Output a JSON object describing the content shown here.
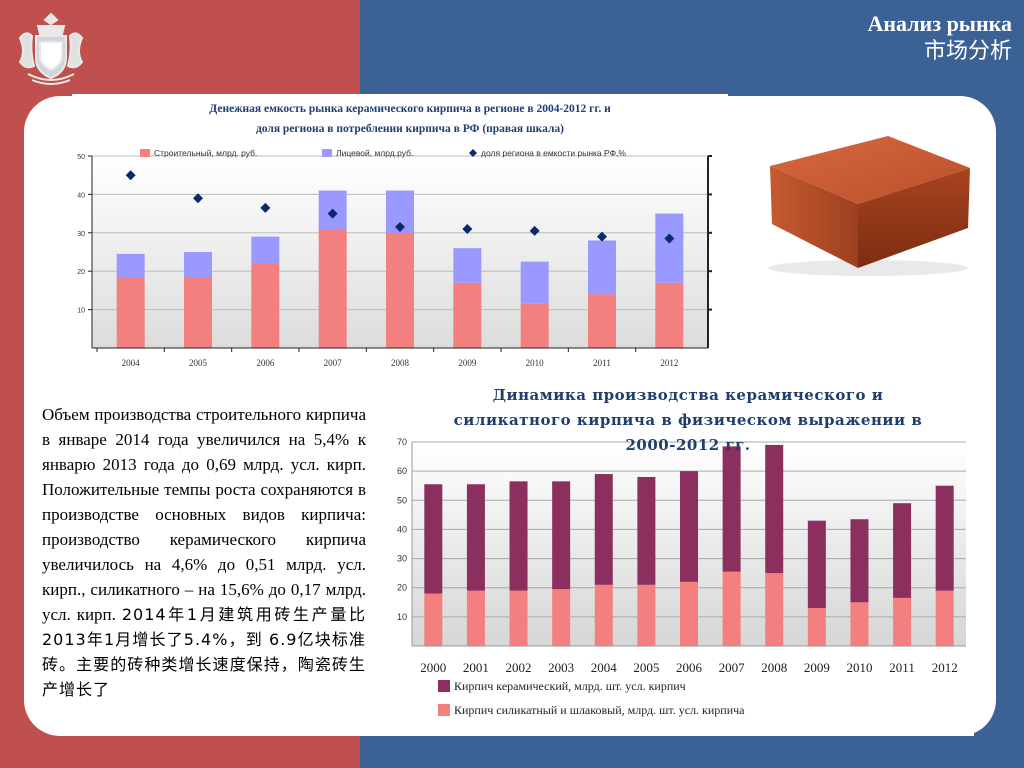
{
  "header": {
    "title_ru": "Анализ рынка",
    "title_zh": "市场分析"
  },
  "colors": {
    "left_bg": "#c0504d",
    "right_bg": "#3c6295",
    "construction": "#f47f7f",
    "facing": "#9999ff",
    "share_marker": "#0b2a6b",
    "ceramic": "#8b2f5e",
    "silicate": "#f47f7f"
  },
  "text": {
    "ru": "Объем производства строительного кирпича в январе 2014 года увеличился на 5,4% к январю 2013 года до 0,69 млрд. усл. кирп. Положительные темпы роста сохраняются в производстве основных видов кирпича: производство керамического кирпича увеличилось на 4,6% до 0,51 млрд. усл. кирп., силикатного – на 15,6% до 0,17 млрд. усл. кирп.",
    "zh": "2014年1月建筑用砖生产量比2013年1月增长了5.4%，到 6.9亿块标准砖。主要的砖种类增长速度保持，陶瓷砖生产增长了"
  },
  "chart_data": [
    {
      "type": "bar",
      "title_line1": "Денежная емкость рынка керамического кирпича в регионе в 2004-2012 гг. и",
      "title_line2": "доля региона в потреблении кирпича в РФ (правая шкала)",
      "categories": [
        "2004",
        "2005",
        "2006",
        "2007",
        "2008",
        "2009",
        "2010",
        "2011",
        "2012"
      ],
      "ylim": [
        0,
        50
      ],
      "yticks": [
        "10",
        "20",
        "30",
        "40",
        "50"
      ],
      "series": [
        {
          "name": "Строительный, млрд. руб.",
          "kind": "bar",
          "values": [
            18.5,
            18.5,
            22,
            31,
            30,
            17,
            11.5,
            14,
            17
          ]
        },
        {
          "name": "Лицевой, млрд.руб.",
          "kind": "bar",
          "values": [
            6,
            6.5,
            7,
            10,
            11,
            9,
            11,
            14,
            18
          ]
        },
        {
          "name": "доля региона в емкости рынка РФ,%",
          "kind": "marker",
          "values": [
            45,
            39,
            36.5,
            35,
            31.5,
            31,
            30.5,
            29,
            28.5
          ]
        }
      ],
      "legend": "top",
      "grid": true
    },
    {
      "type": "bar",
      "title_line1": "Динамика производства керамического и",
      "title_line2": "силикатного кирпича в физическом выражении в",
      "title_line3": "2000-2012 гг.",
      "categories": [
        "2000",
        "2001",
        "2002",
        "2003",
        "2004",
        "2005",
        "2006",
        "2007",
        "2008",
        "2009",
        "2010",
        "2011",
        "2012"
      ],
      "ylim": [
        0,
        70
      ],
      "yticks": [
        "10",
        "20",
        "30",
        "40",
        "50",
        "60",
        "70"
      ],
      "series": [
        {
          "name": "Кирпич силикатный и шлаковый, млрд. шт. усл. кирпича",
          "values": [
            18,
            19,
            19,
            19.5,
            21,
            21,
            22,
            25.5,
            25,
            13,
            15,
            16.5,
            19
          ]
        },
        {
          "name": "Кирпич керамический, млрд. шт. усл. кирпич",
          "values": [
            37.5,
            36.5,
            37.5,
            37,
            38,
            37,
            38,
            43,
            44,
            30,
            28.5,
            32.5,
            36
          ]
        }
      ],
      "legend": "bottom",
      "grid": true
    }
  ]
}
